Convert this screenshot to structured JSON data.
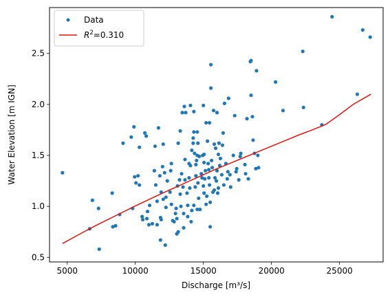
{
  "chart_data": {
    "type": "scatter",
    "xlabel": "Discharge [m³/s]",
    "ylabel": "Water Elevation [m IGN]",
    "xlim": [
      3700,
      28200
    ],
    "ylim": [
      0.455,
      2.95
    ],
    "xticks": [
      5000,
      10000,
      15000,
      20000,
      25000
    ],
    "yticks": [
      0.5,
      1.0,
      1.5,
      2.0,
      2.5
    ],
    "xtick_labels": [
      "5000",
      "10000",
      "15000",
      "20000",
      "25000"
    ],
    "ytick_labels": [
      "0.5",
      "1.0",
      "1.5",
      "2.0",
      "2.5"
    ],
    "grid": false,
    "legend_position": "top-left",
    "series": [
      {
        "name": "Data",
        "kind": "scatter",
        "color": "#1f77b4",
        "points": [
          [
            4650,
            1.33
          ],
          [
            6650,
            0.78
          ],
          [
            6850,
            1.06
          ],
          [
            7300,
            0.98
          ],
          [
            7350,
            0.58
          ],
          [
            8300,
            1.13
          ],
          [
            8350,
            0.8
          ],
          [
            8550,
            0.81
          ],
          [
            8850,
            0.92
          ],
          [
            9100,
            1.62
          ],
          [
            9700,
            1.68
          ],
          [
            9800,
            0.98
          ],
          [
            9900,
            1.78
          ],
          [
            9950,
            1.29
          ],
          [
            10050,
            1.23
          ],
          [
            10200,
            1.3
          ],
          [
            10300,
            1.21
          ],
          [
            10300,
            1.58
          ],
          [
            10500,
            0.9
          ],
          [
            10550,
            0.87
          ],
          [
            10700,
            1.72
          ],
          [
            10800,
            1.69
          ],
          [
            10850,
            0.88
          ],
          [
            10900,
            0.95
          ],
          [
            11000,
            0.82
          ],
          [
            11050,
            1.01
          ],
          [
            11250,
            0.83
          ],
          [
            11400,
            1.35
          ],
          [
            11450,
            1.59
          ],
          [
            11500,
            1.21
          ],
          [
            11600,
            1.05
          ],
          [
            11600,
            0.82
          ],
          [
            11700,
            1.77
          ],
          [
            11800,
            1.3
          ],
          [
            11850,
            0.89
          ],
          [
            11850,
            0.67
          ],
          [
            11900,
            0.87
          ],
          [
            11900,
            1.14
          ],
          [
            12000,
            1.39
          ],
          [
            12050,
            1.07
          ],
          [
            12050,
            1.61
          ],
          [
            12150,
            1.33
          ],
          [
            12200,
            0.62
          ],
          [
            12250,
            0.99
          ],
          [
            12250,
            1.09
          ],
          [
            12350,
            1.25
          ],
          [
            12550,
            1.14
          ],
          [
            12600,
            1.35
          ],
          [
            12650,
            1.02
          ],
          [
            12650,
            1.42
          ],
          [
            12750,
            0.86
          ],
          [
            12850,
            0.85
          ],
          [
            12950,
            0.93
          ],
          [
            13000,
            0.98
          ],
          [
            13050,
            0.88
          ],
          [
            13050,
            0.73
          ],
          [
            13100,
            1.2
          ],
          [
            13150,
            1.62
          ],
          [
            13150,
            0.75
          ],
          [
            13250,
            1.26
          ],
          [
            13300,
            1.12
          ],
          [
            13300,
            1.74
          ],
          [
            13350,
            1.0
          ],
          [
            13400,
            1.32
          ],
          [
            13450,
            1.92
          ],
          [
            13500,
            1.19
          ],
          [
            13550,
            0.93
          ],
          [
            13550,
            0.79
          ],
          [
            13600,
            1.98
          ],
          [
            13650,
            1.46
          ],
          [
            13650,
            1.26
          ],
          [
            13700,
            1.92
          ],
          [
            13800,
            1.13
          ],
          [
            13850,
            1.01
          ],
          [
            13850,
            0.9
          ],
          [
            13950,
            1.28
          ],
          [
            13950,
            1.42
          ],
          [
            14000,
            1.18
          ],
          [
            14050,
            1.99
          ],
          [
            14050,
            1.4
          ],
          [
            14100,
            0.85
          ],
          [
            14150,
            0.96
          ],
          [
            14150,
            1.55
          ],
          [
            14250,
            1.62
          ],
          [
            14250,
            1.67
          ],
          [
            14300,
            1.73
          ],
          [
            14300,
            1.01
          ],
          [
            14300,
            1.93
          ],
          [
            14350,
            1.52
          ],
          [
            14400,
            1.19
          ],
          [
            14450,
            1.3
          ],
          [
            14450,
            1.41
          ],
          [
            14500,
            1.45
          ],
          [
            14550,
            0.97
          ],
          [
            14550,
            1.5
          ],
          [
            14550,
            1.73
          ],
          [
            14600,
            1.62
          ],
          [
            14600,
            1.23
          ],
          [
            14650,
            1.08
          ],
          [
            14700,
            1.49
          ],
          [
            14750,
            0.97
          ],
          [
            14850,
            1.32
          ],
          [
            14900,
            1.28
          ],
          [
            14950,
            1.5
          ],
          [
            15000,
            1.99
          ],
          [
            15000,
            1.2
          ],
          [
            15050,
            1.43
          ],
          [
            15050,
            1.13
          ],
          [
            15050,
            1.51
          ],
          [
            15100,
            1.27
          ],
          [
            15150,
            1.35
          ],
          [
            15200,
            1.82
          ],
          [
            15200,
            1.02
          ],
          [
            15250,
            1.1
          ],
          [
            15300,
            1.64
          ],
          [
            15350,
            1.42
          ],
          [
            15400,
            1.36
          ],
          [
            15400,
            1.28
          ],
          [
            15450,
            1.82
          ],
          [
            15450,
            1.21
          ],
          [
            15500,
            1.04
          ],
          [
            15500,
            0.8
          ],
          [
            15550,
            2.39
          ],
          [
            15550,
            2.16
          ],
          [
            15600,
            1.45
          ],
          [
            15650,
            1.38
          ],
          [
            15700,
            1.14
          ],
          [
            15750,
            1.94
          ],
          [
            15800,
            1.16
          ],
          [
            15800,
            1.61
          ],
          [
            15850,
            1.28
          ],
          [
            15900,
            1.57
          ],
          [
            15950,
            1.25
          ],
          [
            16000,
            1.92
          ],
          [
            16000,
            1.35
          ],
          [
            16050,
            1.13
          ],
          [
            16100,
            1.18
          ],
          [
            16100,
            1.51
          ],
          [
            16150,
            1.62
          ],
          [
            16200,
            1.4
          ],
          [
            16250,
            1.47
          ],
          [
            16350,
            1.31
          ],
          [
            16400,
            1.6
          ],
          [
            16450,
            1.72
          ],
          [
            16500,
            1.21
          ],
          [
            16550,
            2.01
          ],
          [
            16650,
            1.42
          ],
          [
            16750,
            1.27
          ],
          [
            16800,
            1.34
          ],
          [
            16850,
            2.06
          ],
          [
            16950,
            1.31
          ],
          [
            17000,
            1.19
          ],
          [
            17200,
            1.5
          ],
          [
            17300,
            1.89
          ],
          [
            17400,
            1.34
          ],
          [
            17450,
            1.37
          ],
          [
            17600,
            1.26
          ],
          [
            17700,
            1.49
          ],
          [
            17750,
            1.52
          ],
          [
            18050,
            1.41
          ],
          [
            18100,
            1.32
          ],
          [
            18200,
            1.86
          ],
          [
            18300,
            1.27
          ],
          [
            18450,
            2.42
          ],
          [
            18500,
            2.43
          ],
          [
            18500,
            2.09
          ],
          [
            18600,
            1.88
          ],
          [
            18650,
            1.65
          ],
          [
            18750,
            1.52
          ],
          [
            18850,
            1.37
          ],
          [
            18900,
            2.33
          ],
          [
            19000,
            1.5
          ],
          [
            19050,
            1.38
          ],
          [
            20300,
            2.22
          ],
          [
            20850,
            1.94
          ],
          [
            22300,
            2.52
          ],
          [
            22350,
            1.97
          ],
          [
            23700,
            1.8
          ],
          [
            24450,
            2.86
          ],
          [
            26300,
            2.1
          ],
          [
            26700,
            2.73
          ],
          [
            27250,
            2.66
          ]
        ]
      },
      {
        "name": "$R^2$=0.310",
        "kind": "line",
        "color": "#e0140f",
        "points": [
          [
            4650,
            0.636
          ],
          [
            6000,
            0.734
          ],
          [
            7000,
            0.805
          ],
          [
            8000,
            0.872
          ],
          [
            9000,
            0.938
          ],
          [
            10000,
            1.004
          ],
          [
            11000,
            1.067
          ],
          [
            12000,
            1.13
          ],
          [
            13000,
            1.19
          ],
          [
            14000,
            1.25
          ],
          [
            15000,
            1.31
          ],
          [
            16000,
            1.37
          ],
          [
            17000,
            1.425
          ],
          [
            18000,
            1.48
          ],
          [
            19000,
            1.535
          ],
          [
            20000,
            1.59
          ],
          [
            21000,
            1.645
          ],
          [
            22000,
            1.7
          ],
          [
            23000,
            1.75
          ],
          [
            24000,
            1.805
          ],
          [
            25000,
            1.9
          ],
          [
            26000,
            2.0
          ],
          [
            27300,
            2.1
          ]
        ]
      }
    ]
  }
}
